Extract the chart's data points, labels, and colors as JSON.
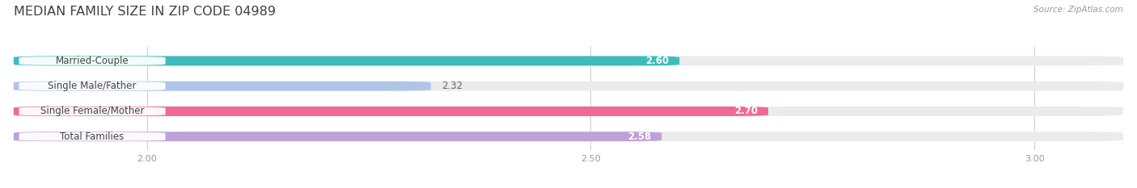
{
  "title": "MEDIAN FAMILY SIZE IN ZIP CODE 04989",
  "source": "Source: ZipAtlas.com",
  "categories": [
    "Married-Couple",
    "Single Male/Father",
    "Single Female/Mother",
    "Total Families"
  ],
  "values": [
    2.6,
    2.32,
    2.7,
    2.58
  ],
  "bar_colors": [
    "#3cbcbc",
    "#b0c4e8",
    "#f06898",
    "#c0a0d8"
  ],
  "track_color": "#ebebef",
  "xlim": [
    1.85,
    3.1
  ],
  "xticks": [
    2.0,
    2.5,
    3.0
  ],
  "bar_height": 0.38,
  "background_color": "#ffffff",
  "title_fontsize": 11.5,
  "label_fontsize": 8.5,
  "value_fontsize": 8.5,
  "source_fontsize": 7.5,
  "tick_fontsize": 8
}
